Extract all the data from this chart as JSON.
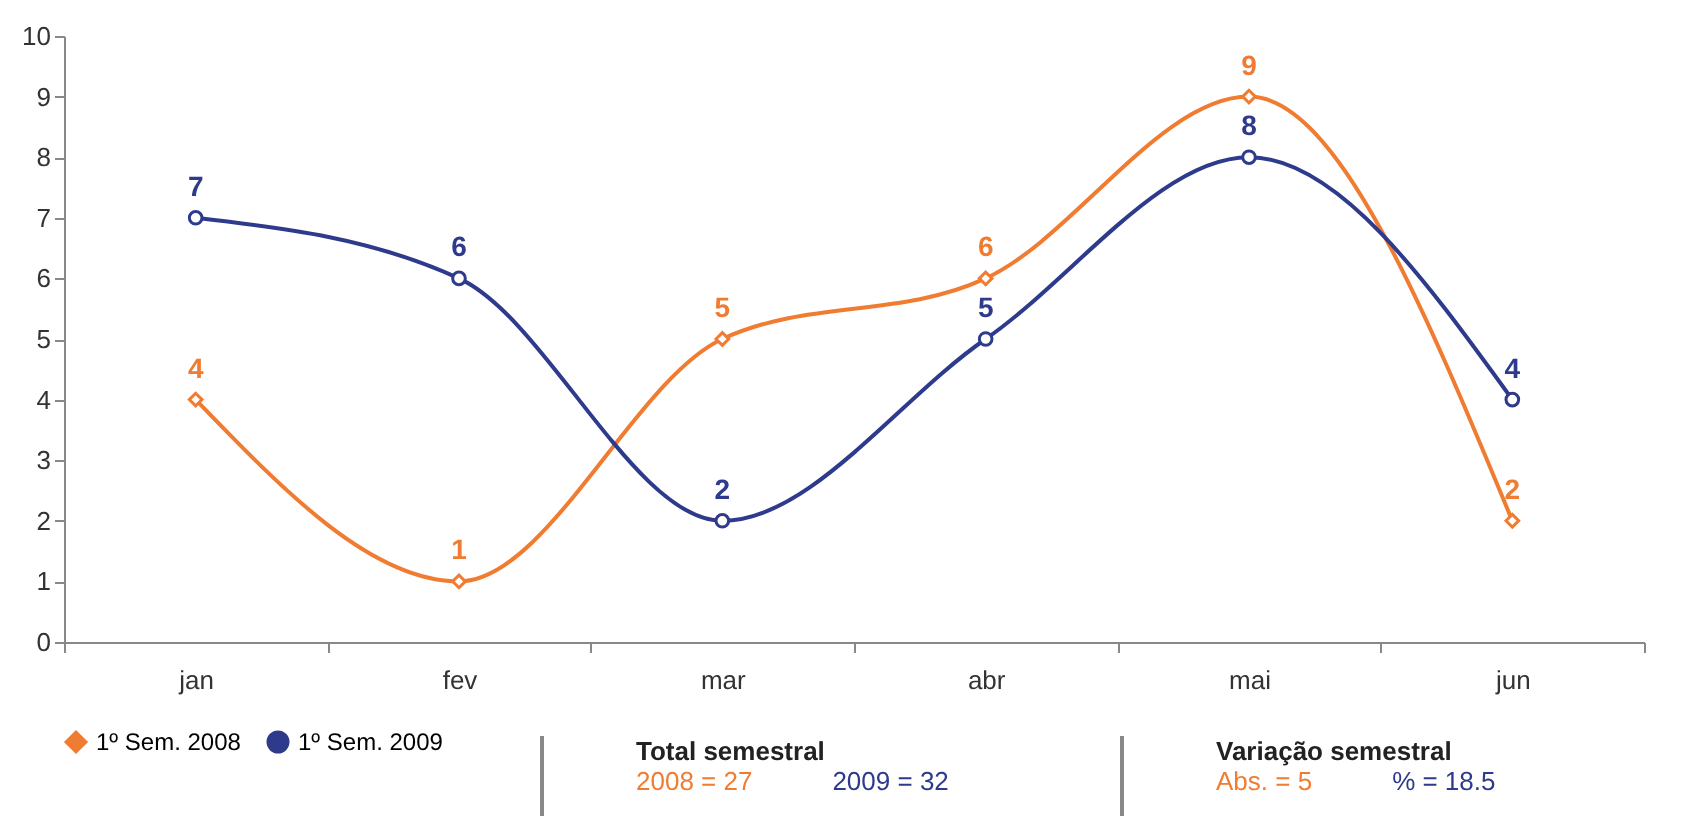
{
  "chart_data": {
    "type": "line",
    "categories": [
      "jan",
      "fev",
      "mar",
      "abr",
      "mai",
      "jun"
    ],
    "series": [
      {
        "name": "1º Sem. 2008",
        "color": "#f07c32",
        "marker": "diamond",
        "values": [
          4,
          1,
          5,
          6,
          9,
          2
        ]
      },
      {
        "name": "1º Sem. 2009",
        "color": "#2e3a8c",
        "marker": "circle",
        "values": [
          7,
          6,
          2,
          5,
          8,
          4
        ]
      }
    ],
    "ylim": [
      0,
      10
    ],
    "yticks": [
      0,
      1,
      2,
      3,
      4,
      5,
      6,
      7,
      8,
      9,
      10
    ],
    "grid": false,
    "legend": "bottom left",
    "data_labels": true,
    "annotations": [
      "Total semestral",
      "2008 = 27",
      "2009 = 32",
      "Variação semestral",
      "Abs. = 5",
      "% = 18.5"
    ]
  }
}
